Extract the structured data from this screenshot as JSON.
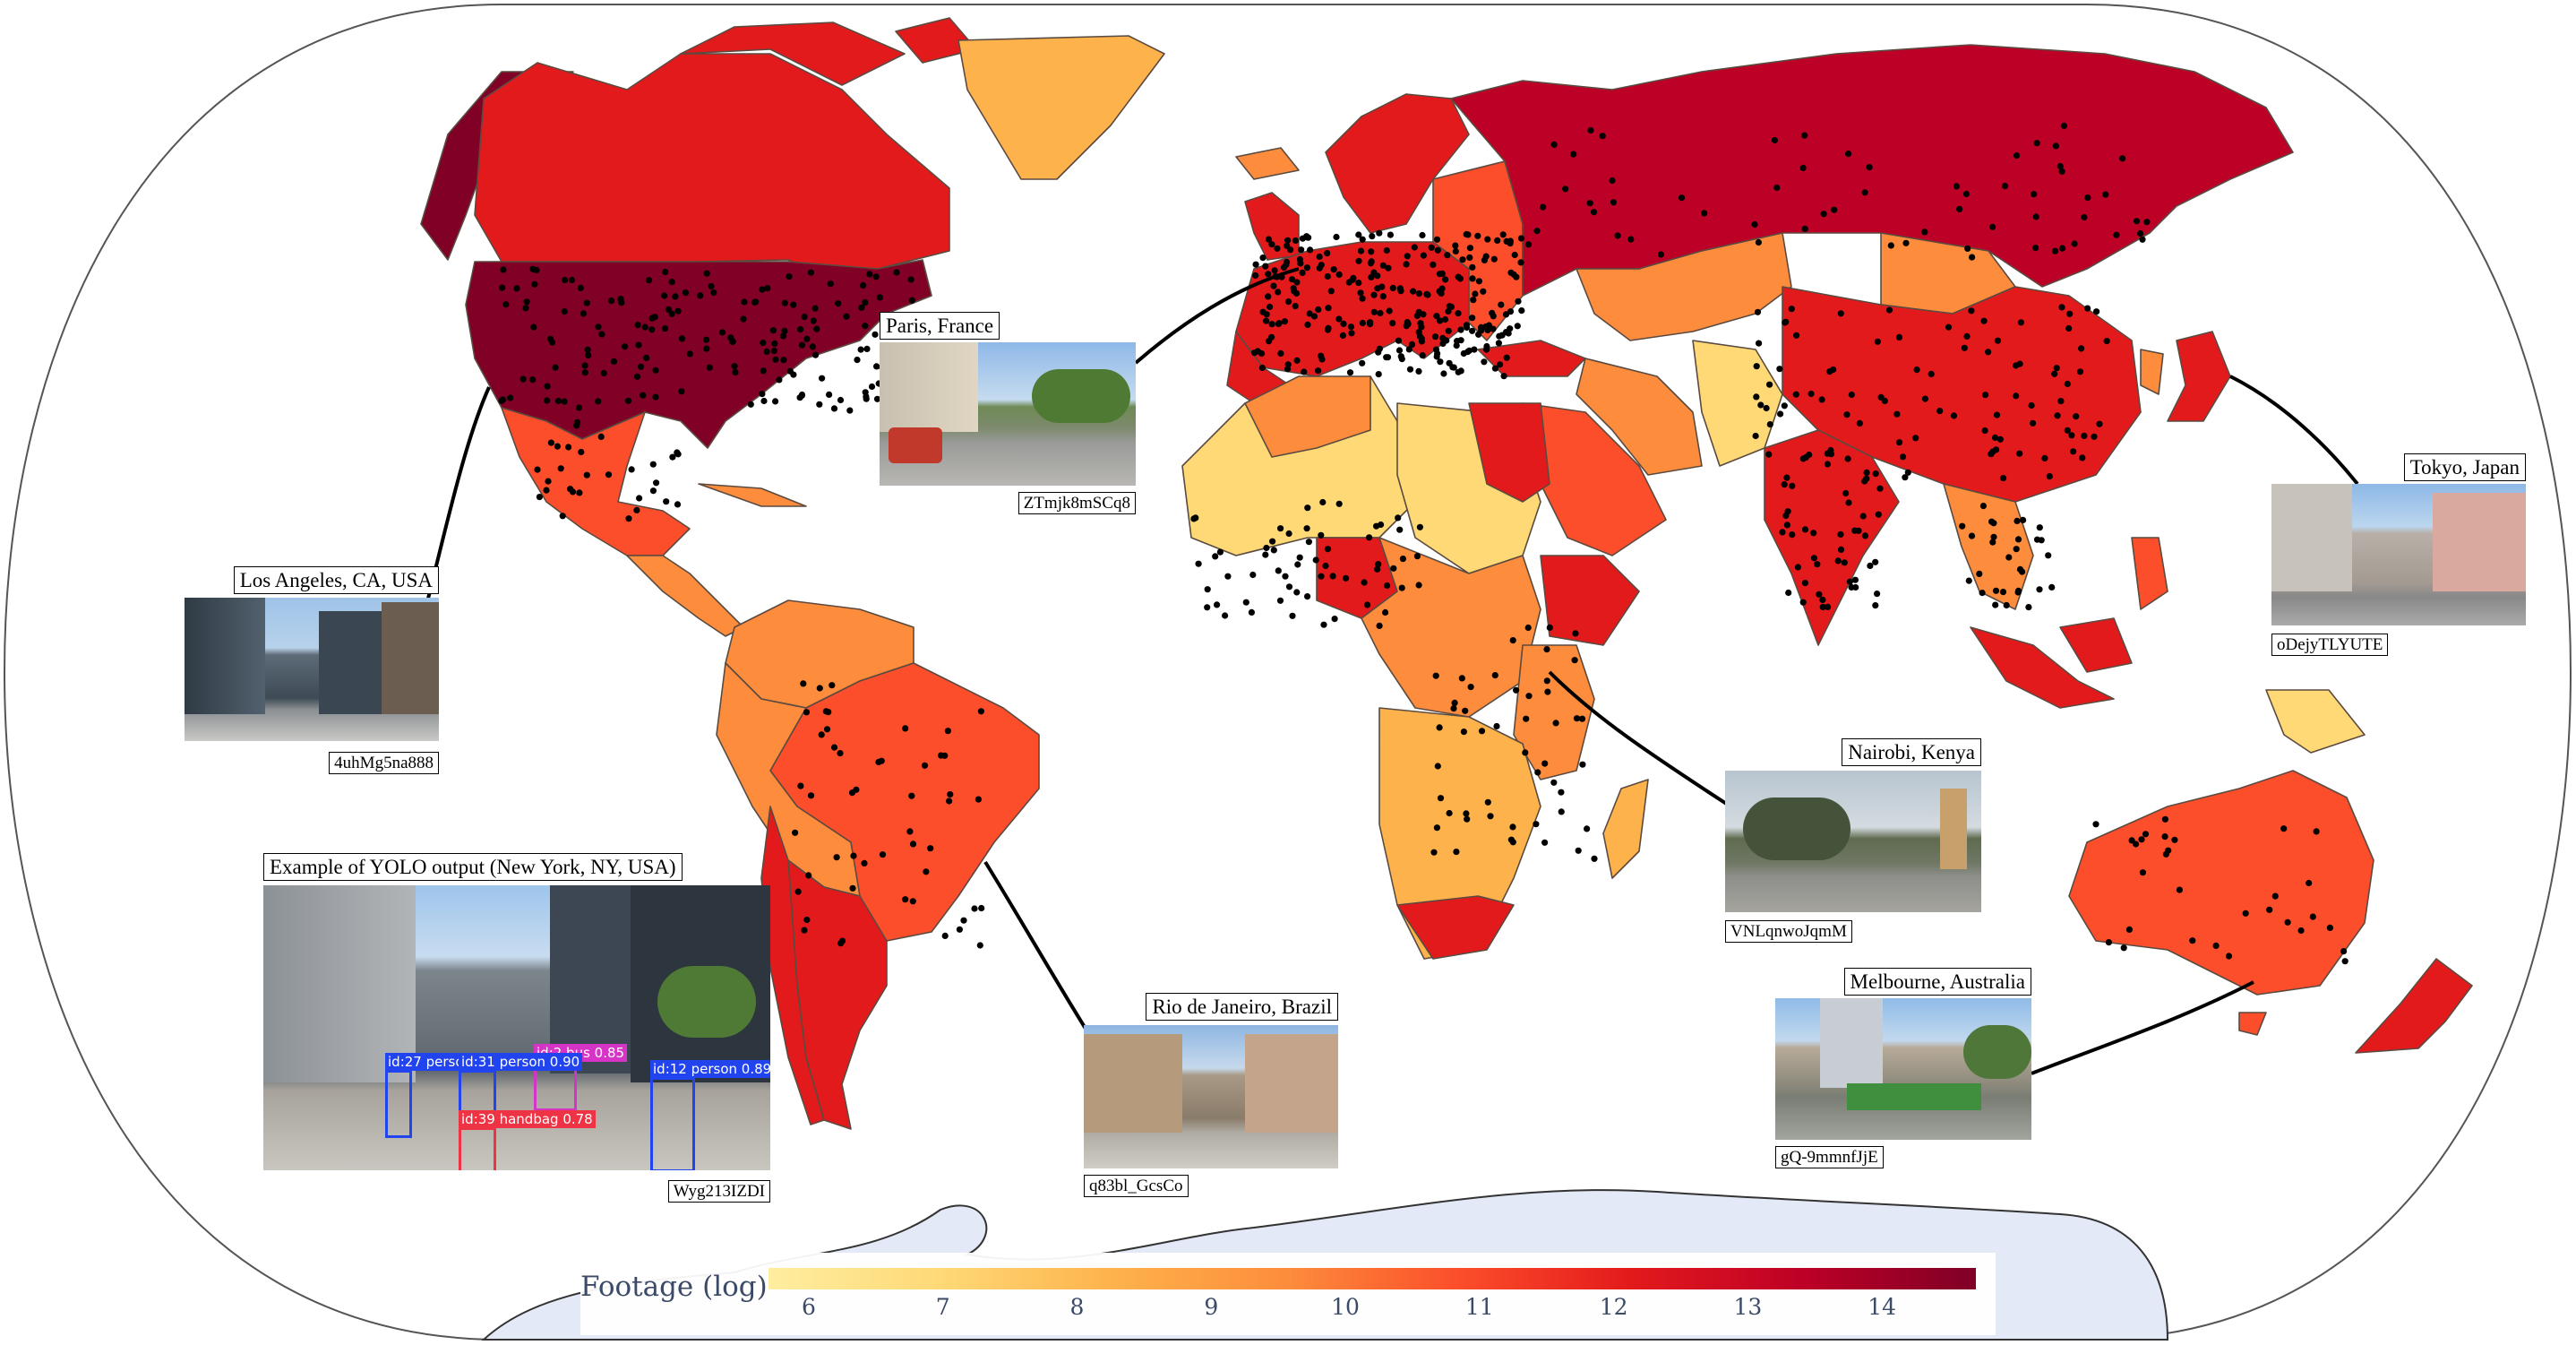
{
  "map": {
    "projection": "Equal Earth",
    "palette": [
      "#ffeda0",
      "#fed976",
      "#feb24c",
      "#fd8d3c",
      "#fc4e2a",
      "#e31a1c",
      "#bd0026",
      "#800026"
    ],
    "point_color": "#000000"
  },
  "legend": {
    "title": "Footage (log)",
    "ticks": [
      "6",
      "7",
      "8",
      "9",
      "10",
      "11",
      "12",
      "13",
      "14"
    ],
    "range": [
      5.7,
      14.7
    ]
  },
  "callouts": [
    {
      "id": "los-angeles",
      "label": "Los Angeles, CA, USA",
      "video_id": "4uhMg5na888"
    },
    {
      "id": "paris",
      "label": "Paris, France",
      "video_id": "ZTmjk8mSCq8"
    },
    {
      "id": "tokyo",
      "label": "Tokyo, Japan",
      "video_id": "oDejyTLYUTE"
    },
    {
      "id": "nairobi",
      "label": "Nairobi, Kenya",
      "video_id": "VNLqnwoJqmM"
    },
    {
      "id": "rio",
      "label": "Rio de Janeiro, Brazil",
      "video_id": "q83bl_GcsCo"
    },
    {
      "id": "melbourne",
      "label": "Melbourne, Australia",
      "video_id": "gQ-9mmnfJjE"
    },
    {
      "id": "yolo",
      "label": "Example of YOLO output (New York, NY, USA)",
      "video_id": "Wyg213IZDI"
    }
  ],
  "detections": [
    {
      "label": "id:2 bus 0.85",
      "color": "#d633c7"
    },
    {
      "label": "id:27 person",
      "color": "#2244ee"
    },
    {
      "label": "id:31 person 0.90",
      "color": "#2244ee"
    },
    {
      "label": "id:12 person 0.89",
      "color": "#2244ee"
    },
    {
      "label": "id:39 handbag 0.78",
      "color": "#ee3344"
    }
  ]
}
